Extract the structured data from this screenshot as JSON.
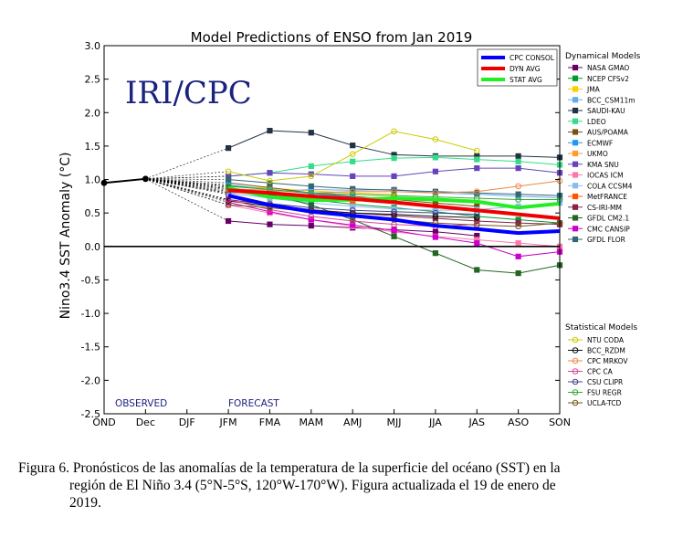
{
  "chart_data": {
    "type": "line",
    "title": "Model Predictions of ENSO from Jan 2019",
    "ylabel": "Nino3.4 SST Anomaly (°C)",
    "xlabel": "",
    "ylim": [
      -2.5,
      3.0
    ],
    "yticks": [
      "3.0",
      "2.5",
      "2.0",
      "1.5",
      "1.0",
      "0.5",
      "0.0",
      "-0.5",
      "-1.0",
      "-1.5",
      "-2.0",
      "-2.5"
    ],
    "categories": [
      "OND",
      "Dec",
      "DJF",
      "JFM",
      "FMA",
      "MAM",
      "AMJ",
      "MJJ",
      "JJA",
      "JAS",
      "ASO",
      "SON"
    ],
    "observed": {
      "label": "OBSERVED",
      "values": [
        0.95,
        1.01
      ]
    },
    "forecast_label": "FORECAST",
    "watermark": "IRI/CPC",
    "averages": [
      {
        "name": "CPC CONSOL",
        "color": "#0000ff",
        "values": [
          0.76,
          0.62,
          0.52,
          0.46,
          0.4,
          0.31,
          0.26,
          0.2,
          0.23
        ]
      },
      {
        "name": "DYN AVG",
        "color": "#ee0000",
        "values": [
          0.84,
          0.8,
          0.75,
          0.71,
          0.66,
          0.6,
          0.54,
          0.48,
          0.42
        ]
      },
      {
        "name": "STAT AVG",
        "color": "#22ee22",
        "values": [
          0.87,
          0.74,
          0.69,
          0.7,
          0.72,
          0.7,
          0.67,
          0.58,
          0.64
        ]
      }
    ],
    "dynamical_header": "Dynamical Models",
    "dynamical_models": [
      {
        "name": "NASA GMAO",
        "color": "#660066",
        "marker": "square",
        "values": [
          0.38,
          0.33,
          0.31,
          0.28,
          0.25,
          0.22,
          0.16,
          null,
          null
        ]
      },
      {
        "name": "NCEP CFSv2",
        "color": "#009933",
        "marker": "square",
        "values": [
          0.86,
          0.78,
          0.7,
          0.63,
          0.58,
          0.52,
          0.45,
          0.4,
          0.35
        ]
      },
      {
        "name": "JMA",
        "color": "#ffcc00",
        "marker": "square",
        "values": [
          0.9,
          0.87,
          0.83,
          0.8,
          0.78,
          null,
          null,
          null,
          null
        ]
      },
      {
        "name": "BCC_CSM11m",
        "color": "#66aaee",
        "marker": "square",
        "values": [
          0.8,
          0.82,
          0.85,
          0.84,
          0.85,
          0.8,
          0.78,
          0.75,
          0.73
        ]
      },
      {
        "name": "SAUDI-KAU",
        "color": "#223344",
        "marker": "square",
        "values": [
          1.47,
          1.73,
          1.7,
          1.51,
          1.37,
          1.35,
          1.35,
          1.35,
          1.33
        ]
      },
      {
        "name": "LDEO",
        "color": "#33dd88",
        "marker": "square",
        "values": [
          1.05,
          1.1,
          1.2,
          1.27,
          1.32,
          1.33,
          1.3,
          1.27,
          1.22
        ]
      },
      {
        "name": "AUS/POAMA",
        "color": "#775511",
        "marker": "square",
        "values": [
          0.95,
          0.88,
          0.8,
          0.75,
          0.7,
          0.65,
          0.6,
          null,
          null
        ]
      },
      {
        "name": "ECMWF",
        "color": "#2299ee",
        "marker": "square",
        "values": [
          0.92,
          0.85,
          0.79,
          0.74,
          null,
          null,
          null,
          null,
          null
        ]
      },
      {
        "name": "UKMO",
        "color": "#ff9933",
        "marker": "square",
        "values": [
          0.82,
          0.75,
          0.7,
          0.67,
          null,
          null,
          null,
          null,
          null
        ]
      },
      {
        "name": "KMA SNU",
        "color": "#6644bb",
        "marker": "square",
        "values": [
          1.05,
          1.1,
          1.08,
          1.05,
          1.05,
          1.12,
          1.17,
          1.17,
          1.1
        ]
      },
      {
        "name": "IOCAS ICM",
        "color": "#ff77aa",
        "marker": "square",
        "values": [
          0.62,
          0.5,
          0.4,
          0.3,
          0.22,
          0.15,
          0.1,
          0.05,
          0.0
        ]
      },
      {
        "name": "COLA CCSM4",
        "color": "#88bbee",
        "marker": "square",
        "values": [
          0.8,
          0.72,
          0.65,
          0.6,
          0.56,
          0.54,
          0.55,
          0.6,
          0.65
        ]
      },
      {
        "name": "MetFRANCE",
        "color": "#ff5500",
        "marker": "square",
        "values": [
          0.84,
          0.78,
          0.72,
          0.68,
          null,
          null,
          null,
          null,
          null
        ]
      },
      {
        "name": "CS-IRI-MM",
        "color": "#882244",
        "marker": "square",
        "values": [
          0.7,
          0.62,
          0.55,
          0.5,
          0.46,
          0.42,
          0.38,
          0.35,
          0.33
        ]
      },
      {
        "name": "GFDL CM2.1",
        "color": "#226622",
        "marker": "square",
        "values": [
          0.88,
          0.78,
          0.62,
          0.4,
          0.15,
          -0.1,
          -0.35,
          -0.4,
          -0.28
        ]
      },
      {
        "name": "CMC CANSIP",
        "color": "#cc00cc",
        "marker": "square",
        "values": [
          0.66,
          0.52,
          0.4,
          0.32,
          0.24,
          0.14,
          0.05,
          -0.15,
          -0.08
        ]
      },
      {
        "name": "GFDL FLOR",
        "color": "#336677",
        "marker": "square",
        "values": [
          1.0,
          0.95,
          0.9,
          0.86,
          0.84,
          0.82,
          0.8,
          0.78,
          0.76
        ]
      }
    ],
    "statistical_header": "Statistical Models",
    "statistical_models": [
      {
        "name": "NTU CODA",
        "color": "#cccc00",
        "marker": "circle",
        "values": [
          1.12,
          0.98,
          1.05,
          1.38,
          1.72,
          1.6,
          1.43,
          null,
          null
        ]
      },
      {
        "name": "BCC_RZDM",
        "color": "#111111",
        "marker": "circle",
        "values": [
          0.68,
          0.6,
          0.54,
          0.5,
          0.48,
          0.45,
          0.43,
          null,
          null
        ]
      },
      {
        "name": "CPC MRKOV",
        "color": "#ee8844",
        "marker": "circle",
        "values": [
          0.86,
          0.84,
          0.8,
          0.82,
          0.82,
          0.8,
          0.82,
          0.9,
          0.98
        ]
      },
      {
        "name": "CPC CA",
        "color": "#dd4499",
        "marker": "circle",
        "values": [
          0.7,
          0.55,
          0.45,
          0.38,
          0.33,
          0.3,
          0.33,
          null,
          null
        ]
      },
      {
        "name": "CSU CLIPR",
        "color": "#444488",
        "marker": "circle",
        "values": [
          0.78,
          0.64,
          0.58,
          0.54,
          0.52,
          0.5,
          0.48,
          null,
          null
        ]
      },
      {
        "name": "FSU REGR",
        "color": "#33aa33",
        "marker": "circle",
        "values": [
          0.9,
          0.85,
          0.8,
          0.78,
          0.76,
          0.74,
          0.72,
          0.7,
          0.7
        ]
      },
      {
        "name": "UCLA-TCD",
        "color": "#775522",
        "marker": "circle",
        "values": [
          0.62,
          0.58,
          0.52,
          0.45,
          0.4,
          0.35,
          0.32,
          0.3,
          0.35
        ]
      }
    ]
  },
  "caption": {
    "line1": "Figura 6. Pronósticos de las anomalías de la temperatura de la superficie del océano (SST) en la",
    "line2": "región de El Niño 3.4 (5°N-5°S, 120°W-170°W). Figura actualizada el 19 de enero de",
    "line3": "2019."
  }
}
